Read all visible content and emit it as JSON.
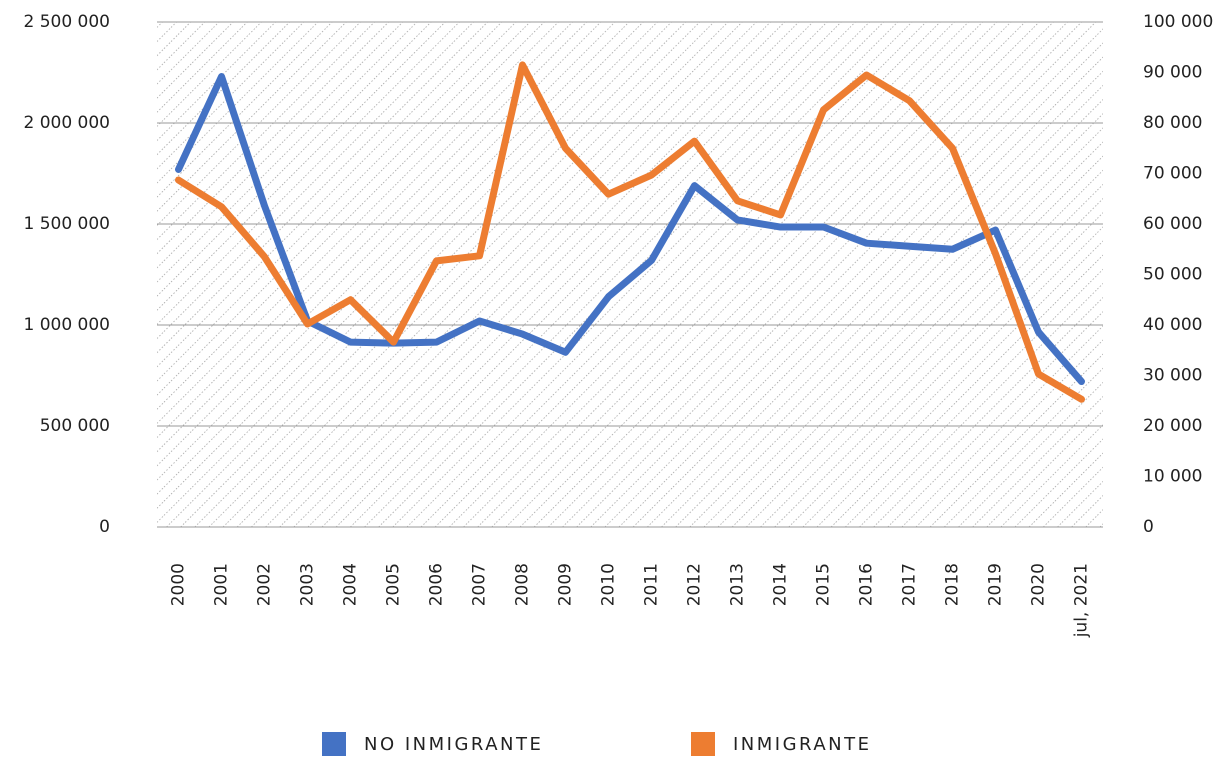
{
  "chart_data": {
    "type": "line",
    "categories": [
      "2000",
      "2001",
      "2002",
      "2003",
      "2004",
      "2005",
      "2006",
      "2007",
      "2008",
      "2009",
      "2010",
      "2011",
      "2012",
      "2013",
      "2014",
      "2015",
      "2016",
      "2017",
      "2018",
      "2019",
      "2020",
      "jul, 2021"
    ],
    "series": [
      {
        "name": "NO INMIGRANTE",
        "color": "#4472c4",
        "axis": "y",
        "values": [
          1770000,
          2230000,
          1590000,
          1020000,
          915000,
          910000,
          915000,
          1020000,
          955000,
          865000,
          1140000,
          1320000,
          1690000,
          1520000,
          1485000,
          1485000,
          1405000,
          1390000,
          1375000,
          1470000,
          965000,
          720000
        ]
      },
      {
        "name": "INMIGRANTE",
        "color": "#ed7d31",
        "axis": "y2",
        "values": [
          68700,
          63400,
          53500,
          40200,
          45000,
          36600,
          52700,
          53700,
          91500,
          75000,
          65900,
          69700,
          76400,
          64600,
          61800,
          82600,
          89500,
          84400,
          75000,
          54100,
          30300,
          25300
        ]
      }
    ],
    "ylim": [
      0,
      2500000
    ],
    "yticks": [
      0,
      {
        "value": 500000,
        "label": "500 000"
      },
      {
        "value": 1000000,
        "label": "1 000 000"
      },
      {
        "value": 1500000,
        "label": "1 500 000"
      },
      {
        "value": 2000000,
        "label": "2 000 000"
      },
      {
        "value": 2500000,
        "label": "2 500 000"
      }
    ],
    "y2lim": [
      0,
      100000
    ],
    "y2ticks": [
      0,
      {
        "value": 10000,
        "label": "10 000"
      },
      {
        "value": 20000,
        "label": "20 000"
      },
      {
        "value": 30000,
        "label": "30 000"
      },
      {
        "value": 40000,
        "label": "40 000"
      },
      {
        "value": 50000,
        "label": "50 000"
      },
      {
        "value": 60000,
        "label": "60 000"
      },
      {
        "value": 70000,
        "label": "70 000"
      },
      {
        "value": 80000,
        "label": "80 000"
      },
      {
        "value": 90000,
        "label": "90 000"
      },
      {
        "value": 100000,
        "label": "100 000"
      }
    ],
    "grid": true
  }
}
